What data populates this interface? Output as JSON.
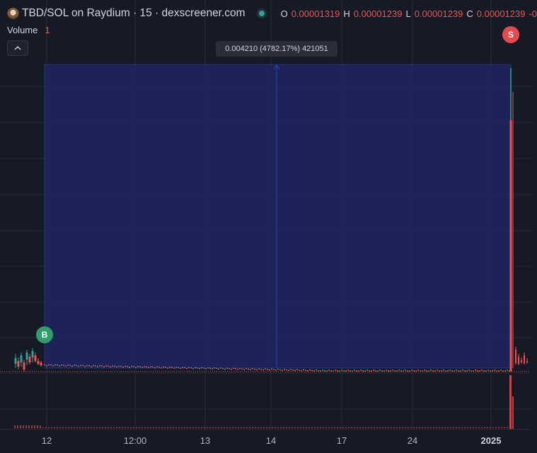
{
  "header": {
    "title": "TBD/SOL on Raydium · 15 · dexscreener.com",
    "ohlc": [
      {
        "key": "O",
        "value": "0.00001319"
      },
      {
        "key": "H",
        "value": "0.00001239"
      },
      {
        "key": "L",
        "value": "0.00001239"
      },
      {
        "key": "C",
        "value": "0.00001239"
      }
    ],
    "ohlc_tail": "-0"
  },
  "volume": {
    "label": "Volume",
    "value": "1"
  },
  "measure_tooltip": "0.004210 (4782.17%) 421051",
  "markers": {
    "buy": "B",
    "sell": "S"
  },
  "time_axis": [
    "12",
    "12:00",
    "13",
    "14",
    "17",
    "24",
    "2025"
  ],
  "colors": {
    "background": "#161a25",
    "grid": "#262a35",
    "up": "#26a69a",
    "down": "#ef5350",
    "range": "#1e2461",
    "range_border": "#2962ff"
  },
  "icons": {
    "collapse": "chevron-up-icon",
    "status": "live-dot-icon"
  }
}
